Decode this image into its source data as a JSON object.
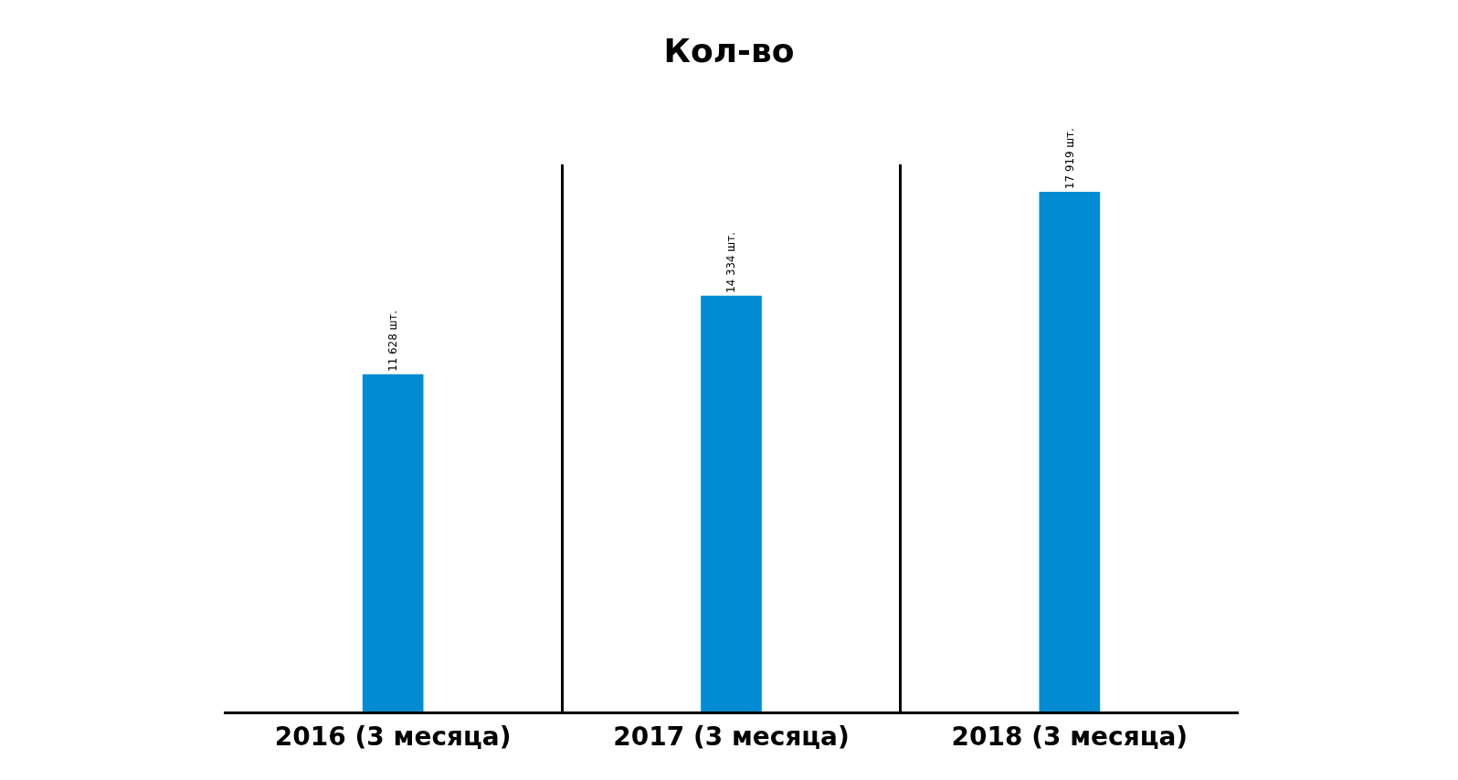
{
  "chart_data": {
    "type": "bar",
    "title": "Кол-во",
    "categories": [
      "2016 (3 месяца)",
      "2017 (3 месяца)",
      "2018 (3 месяца)"
    ],
    "values": [
      11628,
      14334,
      17919
    ],
    "value_labels": [
      "11 628 шт.",
      "14 334 шт.",
      "17 919 шт."
    ],
    "color": "#008bd2",
    "grid": "x",
    "legend": false
  }
}
